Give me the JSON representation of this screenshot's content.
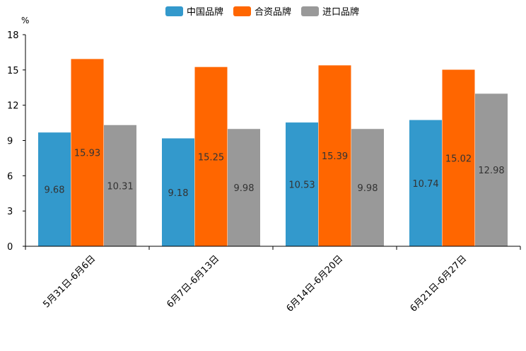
{
  "chart_data": {
    "type": "bar",
    "unit": "%",
    "categories": [
      "5月31日-6月6日",
      "6月7日-6月13日",
      "6月14日-6月20日",
      "6月21日-6月27日"
    ],
    "series": [
      {
        "name": "中国品牌",
        "color": "#3399cc",
        "values": [
          9.68,
          9.18,
          10.53,
          10.74
        ]
      },
      {
        "name": "合资品牌",
        "color": "#ff6600",
        "values": [
          15.93,
          15.25,
          15.39,
          15.02
        ]
      },
      {
        "name": "进口品牌",
        "color": "#999999",
        "values": [
          10.31,
          9.98,
          9.98,
          12.98
        ]
      }
    ],
    "y_ticks": [
      0,
      3,
      6,
      9,
      12,
      15,
      18
    ],
    "ylim": [
      0,
      18
    ],
    "legend_position": "top-center",
    "grid": false
  }
}
